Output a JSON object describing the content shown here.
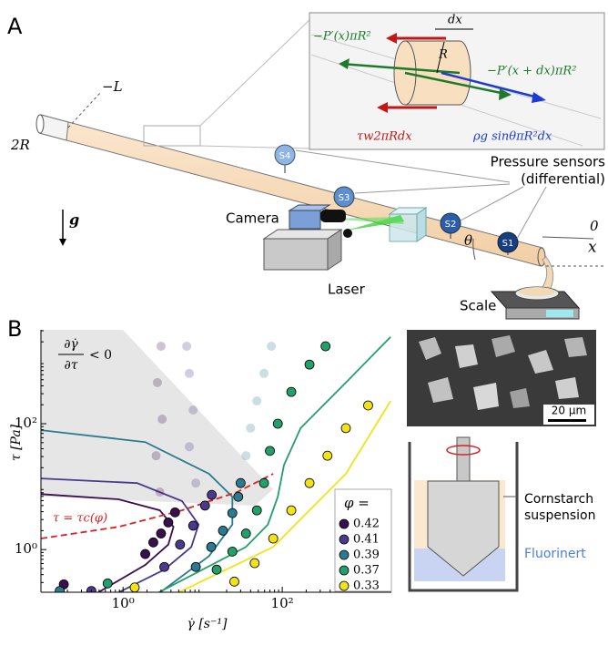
{
  "panel_a": {
    "label": "A",
    "minus_L": "−L",
    "two_R": "2R",
    "g": "g",
    "sensors_label": [
      "Pressure sensors",
      "(differential)"
    ],
    "sensors": [
      "S4",
      "S3",
      "S2",
      "S1"
    ],
    "camera": "Camera",
    "laser": "Laser",
    "scale": "Scale",
    "origin": "0",
    "x_axis": "x",
    "theta": "θ",
    "inset": {
      "dx": "dx",
      "R": "R",
      "pressure_left": "−P′(x)πR²",
      "pressure_right": "−P′(x + dx)πR²",
      "wall": "τw2πRdx",
      "gravity": "ρg sinθπR²dx"
    }
  },
  "panel_b": {
    "label": "B"
  },
  "micrograph": {
    "scale_bar": "20 μm"
  },
  "rheometer": {
    "suspension": [
      "Cornstarch",
      "suspension"
    ],
    "fluorinert": "Fluorinert"
  },
  "chart_data": {
    "type": "scatter",
    "xlabel": "γ̇ [s⁻¹]",
    "ylabel": "τ [Pa]",
    "log_x": true,
    "log_y": true,
    "xlim": [
      0.093,
      2350
    ],
    "ylim": [
      0.21,
      3100
    ],
    "xticks": [
      {
        "value": 1,
        "label": "10⁰"
      },
      {
        "value": 100,
        "label": "10²"
      }
    ],
    "yticks": [
      {
        "value": 1,
        "label": "10⁰"
      },
      {
        "value": 100,
        "label": "10²"
      }
    ],
    "legend_title": "φ =",
    "region_label": {
      "numerator": "∂γ̇",
      "denominator": "∂τ",
      "relation": "< 0"
    },
    "critical": {
      "label": "τ = τc(φ)",
      "color": "#e02020",
      "x": [
        0.093,
        0.88,
        5.5,
        27,
        77
      ],
      "y": [
        1.5,
        2.3,
        4.2,
        8.2,
        16
      ]
    },
    "series": [
      {
        "name": "0.42",
        "color": "#3b0f4f",
        "x": [
          0.18,
          1.9,
          2.4,
          3.0,
          3.7,
          4.5
        ],
        "y": [
          0.28,
          0.85,
          1.3,
          1.8,
          2.7,
          3.9
        ],
        "faded_x": [
          2.9,
          2.6,
          3.1,
          2.7,
          3.0
        ],
        "faded_y": [
          8.2,
          31,
          118,
          450,
          1700
        ],
        "curve_x": [
          0.093,
          0.88,
          2.9,
          4.3,
          3.7,
          1.9,
          0.4
        ],
        "curve_y": [
          7.6,
          6.3,
          4.2,
          2.3,
          1.2,
          0.57,
          0.18
        ]
      },
      {
        "name": "0.41",
        "color": "#4b3a8c",
        "x": [
          0.4,
          3.3,
          5.2,
          7.6,
          10.7,
          13
        ],
        "y": [
          0.22,
          0.53,
          1.2,
          2.4,
          5.0,
          7.4
        ],
        "faded_x": [
          8.2,
          6.8,
          7.6,
          6.8,
          6.3
        ],
        "faded_y": [
          11.4,
          43,
          165,
          630,
          1700
        ],
        "curve_x": [
          0.093,
          1.5,
          5.5,
          8.9,
          7.2,
          3.3,
          0.52
        ],
        "curve_y": [
          13.5,
          11.4,
          5.9,
          2.5,
          1.1,
          0.48,
          0.15
        ]
      },
      {
        "name": "0.39",
        "color": "#2a7b8e",
        "x": [
          0.16,
          8.2,
          12.8,
          18,
          23.6,
          28,
          30
        ],
        "y": [
          0.22,
          0.53,
          1.1,
          2.0,
          3.8,
          6.9,
          11.4
        ],
        "faded_x": [
          35,
          40,
          48,
          59,
          73
        ],
        "faded_y": [
          31,
          85,
          230,
          630,
          1700
        ],
        "curve_x": [
          0.093,
          1.9,
          12,
          23.6,
          23.6,
          12,
          2.5
        ],
        "curve_y": [
          79,
          51,
          16,
          6.9,
          2.5,
          0.79,
          0.18
        ]
      },
      {
        "name": "0.37",
        "color": "#22a06b",
        "x": [
          0.64,
          15,
          23.6,
          35,
          48,
          59,
          70,
          88,
          130,
          220,
          350
        ],
        "y": [
          0.29,
          0.48,
          0.93,
          1.8,
          4.2,
          11.4,
          37,
          100,
          320,
          870,
          1700
        ],
        "curve_x": [
          1.7,
          35,
          66,
          88,
          105,
          170,
          630,
          2300
        ],
        "curve_y": [
          0.15,
          1.1,
          2.5,
          6.9,
          22,
          85,
          450,
          2400
        ]
      },
      {
        "name": "0.33",
        "color": "#f2e318",
        "x": [
          1.4,
          25,
          45,
          77,
          130,
          220,
          370,
          630,
          1200
        ],
        "y": [
          0.25,
          0.31,
          0.61,
          1.5,
          4.2,
          11.4,
          31,
          85,
          195
        ],
        "curve_x": [
          2.9,
          77,
          220,
          630,
          2300
        ],
        "curve_y": [
          0.15,
          1.1,
          4.2,
          16,
          230
        ]
      }
    ]
  }
}
